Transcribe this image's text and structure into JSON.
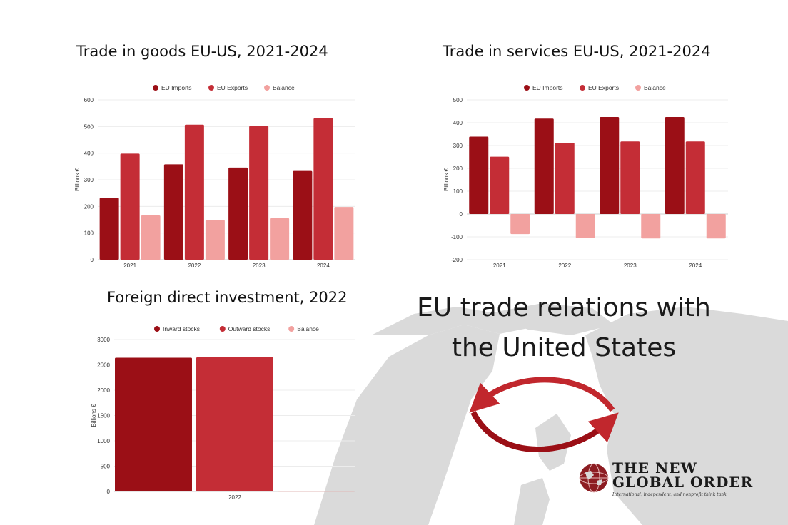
{
  "colors": {
    "inward": "#9b0f16",
    "outward": "#c42d36",
    "balance": "#f2a19f",
    "map": "#dadada",
    "arrow": "#c1272d"
  },
  "headline": {
    "line1": "EU trade relations with",
    "line2": "the United States"
  },
  "logo": {
    "line1": "THE NEW",
    "line2": "GLOBAL ORDER",
    "tagline": "International, independent, and nonprofit think tank",
    "icon": "globe-emblem-icon"
  },
  "chart_data": [
    {
      "id": "goods",
      "type": "bar",
      "title": "Trade in goods EU-US, 2021-2024",
      "ylabel": "Billions €",
      "categories": [
        "2021",
        "2022",
        "2023",
        "2024"
      ],
      "ylim": [
        0,
        600
      ],
      "yticks": [
        0,
        100,
        200,
        300,
        400,
        500,
        600
      ],
      "legend_position": "top-center",
      "grid": true,
      "series": [
        {
          "name": "EU Imports",
          "values": [
            232,
            358,
            346,
            333
          ]
        },
        {
          "name": "EU Exports",
          "values": [
            398,
            507,
            502,
            531
          ]
        },
        {
          "name": "Balance",
          "values": [
            166,
            149,
            156,
            198
          ]
        }
      ]
    },
    {
      "id": "services",
      "type": "bar",
      "title": "Trade in services EU-US, 2021-2024",
      "ylabel": "Billions €",
      "categories": [
        "2021",
        "2022",
        "2023",
        "2024"
      ],
      "ylim": [
        -200,
        500
      ],
      "yticks": [
        -200,
        -100,
        0,
        100,
        200,
        300,
        400,
        500
      ],
      "legend_position": "top-center",
      "grid": true,
      "series": [
        {
          "name": "EU Imports",
          "values": [
            339,
            418,
            425,
            425
          ]
        },
        {
          "name": "EU Exports",
          "values": [
            251,
            312,
            318,
            318
          ]
        },
        {
          "name": "Balance",
          "values": [
            -88,
            -106,
            -107,
            -107
          ]
        }
      ]
    },
    {
      "id": "fdi",
      "type": "bar",
      "title": "Foreign direct investment, 2022",
      "ylabel": "Billions €",
      "categories": [
        "2022"
      ],
      "ylim": [
        0,
        3000
      ],
      "yticks": [
        0,
        500,
        1000,
        1500,
        2000,
        2500,
        3000
      ],
      "legend_position": "top-center",
      "grid": true,
      "series": [
        {
          "name": "Inward stocks",
          "values": [
            2640
          ]
        },
        {
          "name": "Outward stocks",
          "values": [
            2650
          ]
        },
        {
          "name": "Balance",
          "values": [
            10
          ]
        }
      ]
    }
  ]
}
